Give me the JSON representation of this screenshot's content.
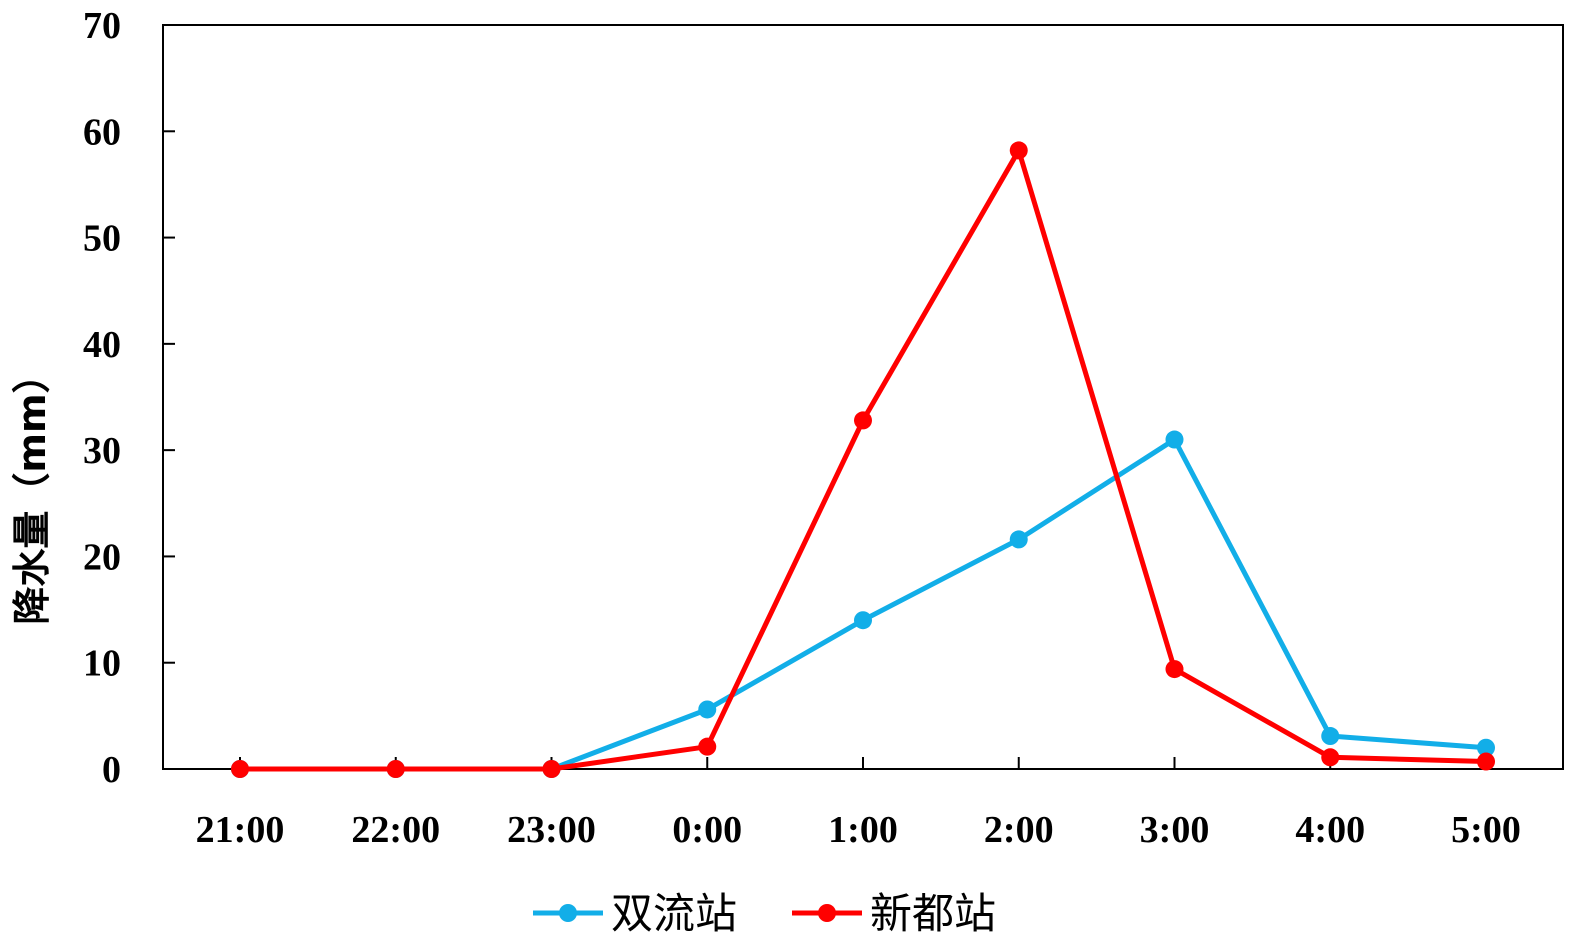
{
  "chart_data": {
    "type": "line",
    "title": "",
    "xlabel": "",
    "ylabel": "降水量（mm）",
    "categories": [
      "21:00",
      "22:00",
      "23:00",
      "0:00",
      "1:00",
      "2:00",
      "3:00",
      "4:00",
      "5:00"
    ],
    "ylim": [
      0,
      70
    ],
    "yticks": [
      0,
      10,
      20,
      30,
      40,
      50,
      60,
      70
    ],
    "grid": false,
    "legend_position": "bottom",
    "series": [
      {
        "name": "双流站",
        "color": "#12aee8",
        "values": [
          0,
          0,
          0,
          5.6,
          14.0,
          21.6,
          31.0,
          3.1,
          2.0
        ]
      },
      {
        "name": "新都站",
        "color": "#ff0000",
        "values": [
          0,
          0,
          0,
          2.1,
          32.8,
          58.2,
          9.4,
          1.1,
          0.7
        ]
      }
    ]
  }
}
